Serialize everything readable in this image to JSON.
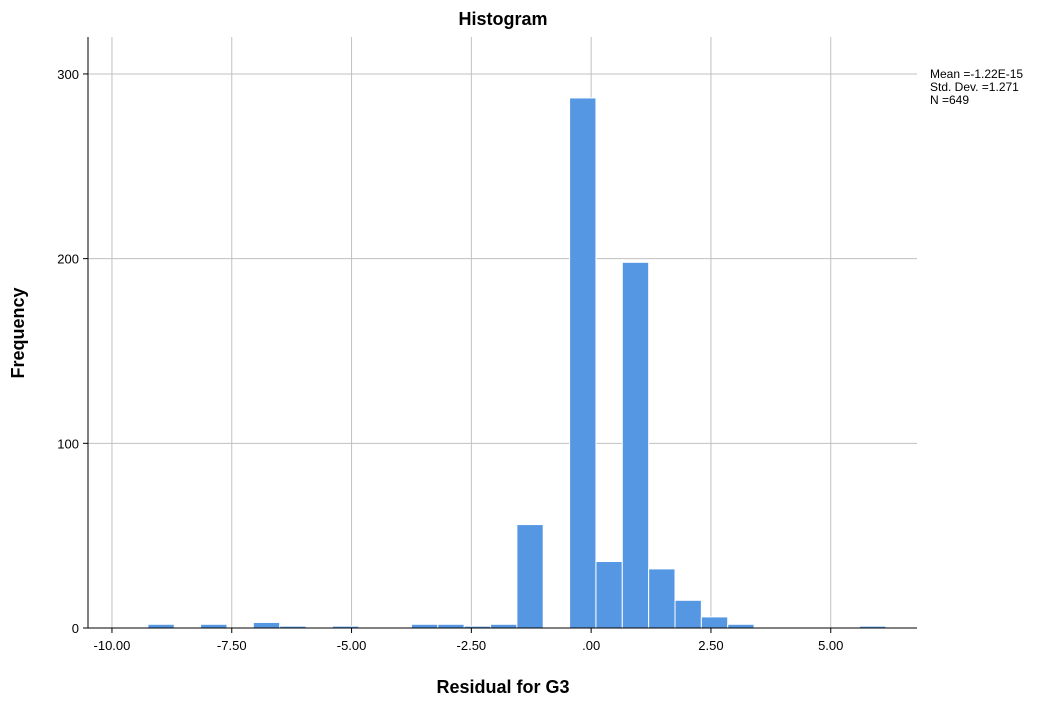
{
  "chart_data": {
    "type": "bar",
    "title": "Histogram",
    "xlabel": "Residual for G3",
    "ylabel": "Frequency",
    "xlim": [
      -10.5,
      6.8
    ],
    "ylim": [
      0,
      320
    ],
    "x_ticks": [
      -10.0,
      -7.5,
      -5.0,
      -2.5,
      0.0,
      2.5,
      5.0
    ],
    "x_tick_labels": [
      "-10.00",
      "-7.50",
      "-5.00",
      "-2.50",
      ".00",
      "2.50",
      "5.00"
    ],
    "y_ticks": [
      0,
      100,
      200,
      300
    ],
    "y_tick_labels": [
      "0",
      "100",
      "200",
      "300"
    ],
    "grid": true,
    "bar_color": "#5597e3",
    "bins": [
      {
        "start": -9.25,
        "end": -8.7,
        "count": 2
      },
      {
        "start": -8.15,
        "end": -7.6,
        "count": 2
      },
      {
        "start": -7.05,
        "end": -6.5,
        "count": 3
      },
      {
        "start": -6.5,
        "end": -5.95,
        "count": 1
      },
      {
        "start": -5.4,
        "end": -4.85,
        "count": 1
      },
      {
        "start": -4.85,
        "end": -4.3,
        "count": 0
      },
      {
        "start": -4.3,
        "end": -3.75,
        "count": 0
      },
      {
        "start": -3.75,
        "end": -3.2,
        "count": 2
      },
      {
        "start": -3.2,
        "end": -2.65,
        "count": 2
      },
      {
        "start": -2.65,
        "end": -2.1,
        "count": 1
      },
      {
        "start": -2.1,
        "end": -1.55,
        "count": 2
      },
      {
        "start": -1.55,
        "end": -1.0,
        "count": 56
      },
      {
        "start": -1.0,
        "end": -0.45,
        "count": 0
      },
      {
        "start": -0.45,
        "end": 0.1,
        "count": 287
      },
      {
        "start": 0.1,
        "end": 0.65,
        "count": 36
      },
      {
        "start": 0.65,
        "end": 1.2,
        "count": 198
      },
      {
        "start": 1.2,
        "end": 1.75,
        "count": 32
      },
      {
        "start": 1.75,
        "end": 2.3,
        "count": 15
      },
      {
        "start": 2.3,
        "end": 2.85,
        "count": 6
      },
      {
        "start": 2.85,
        "end": 3.4,
        "count": 2
      },
      {
        "start": 5.6,
        "end": 6.15,
        "count": 1
      }
    ],
    "stats": {
      "mean_label": "Mean =-1.22E-15",
      "std_label": "Std. Dev. =1.271",
      "n_label": "N =649"
    },
    "stats_placement": "top-right"
  }
}
